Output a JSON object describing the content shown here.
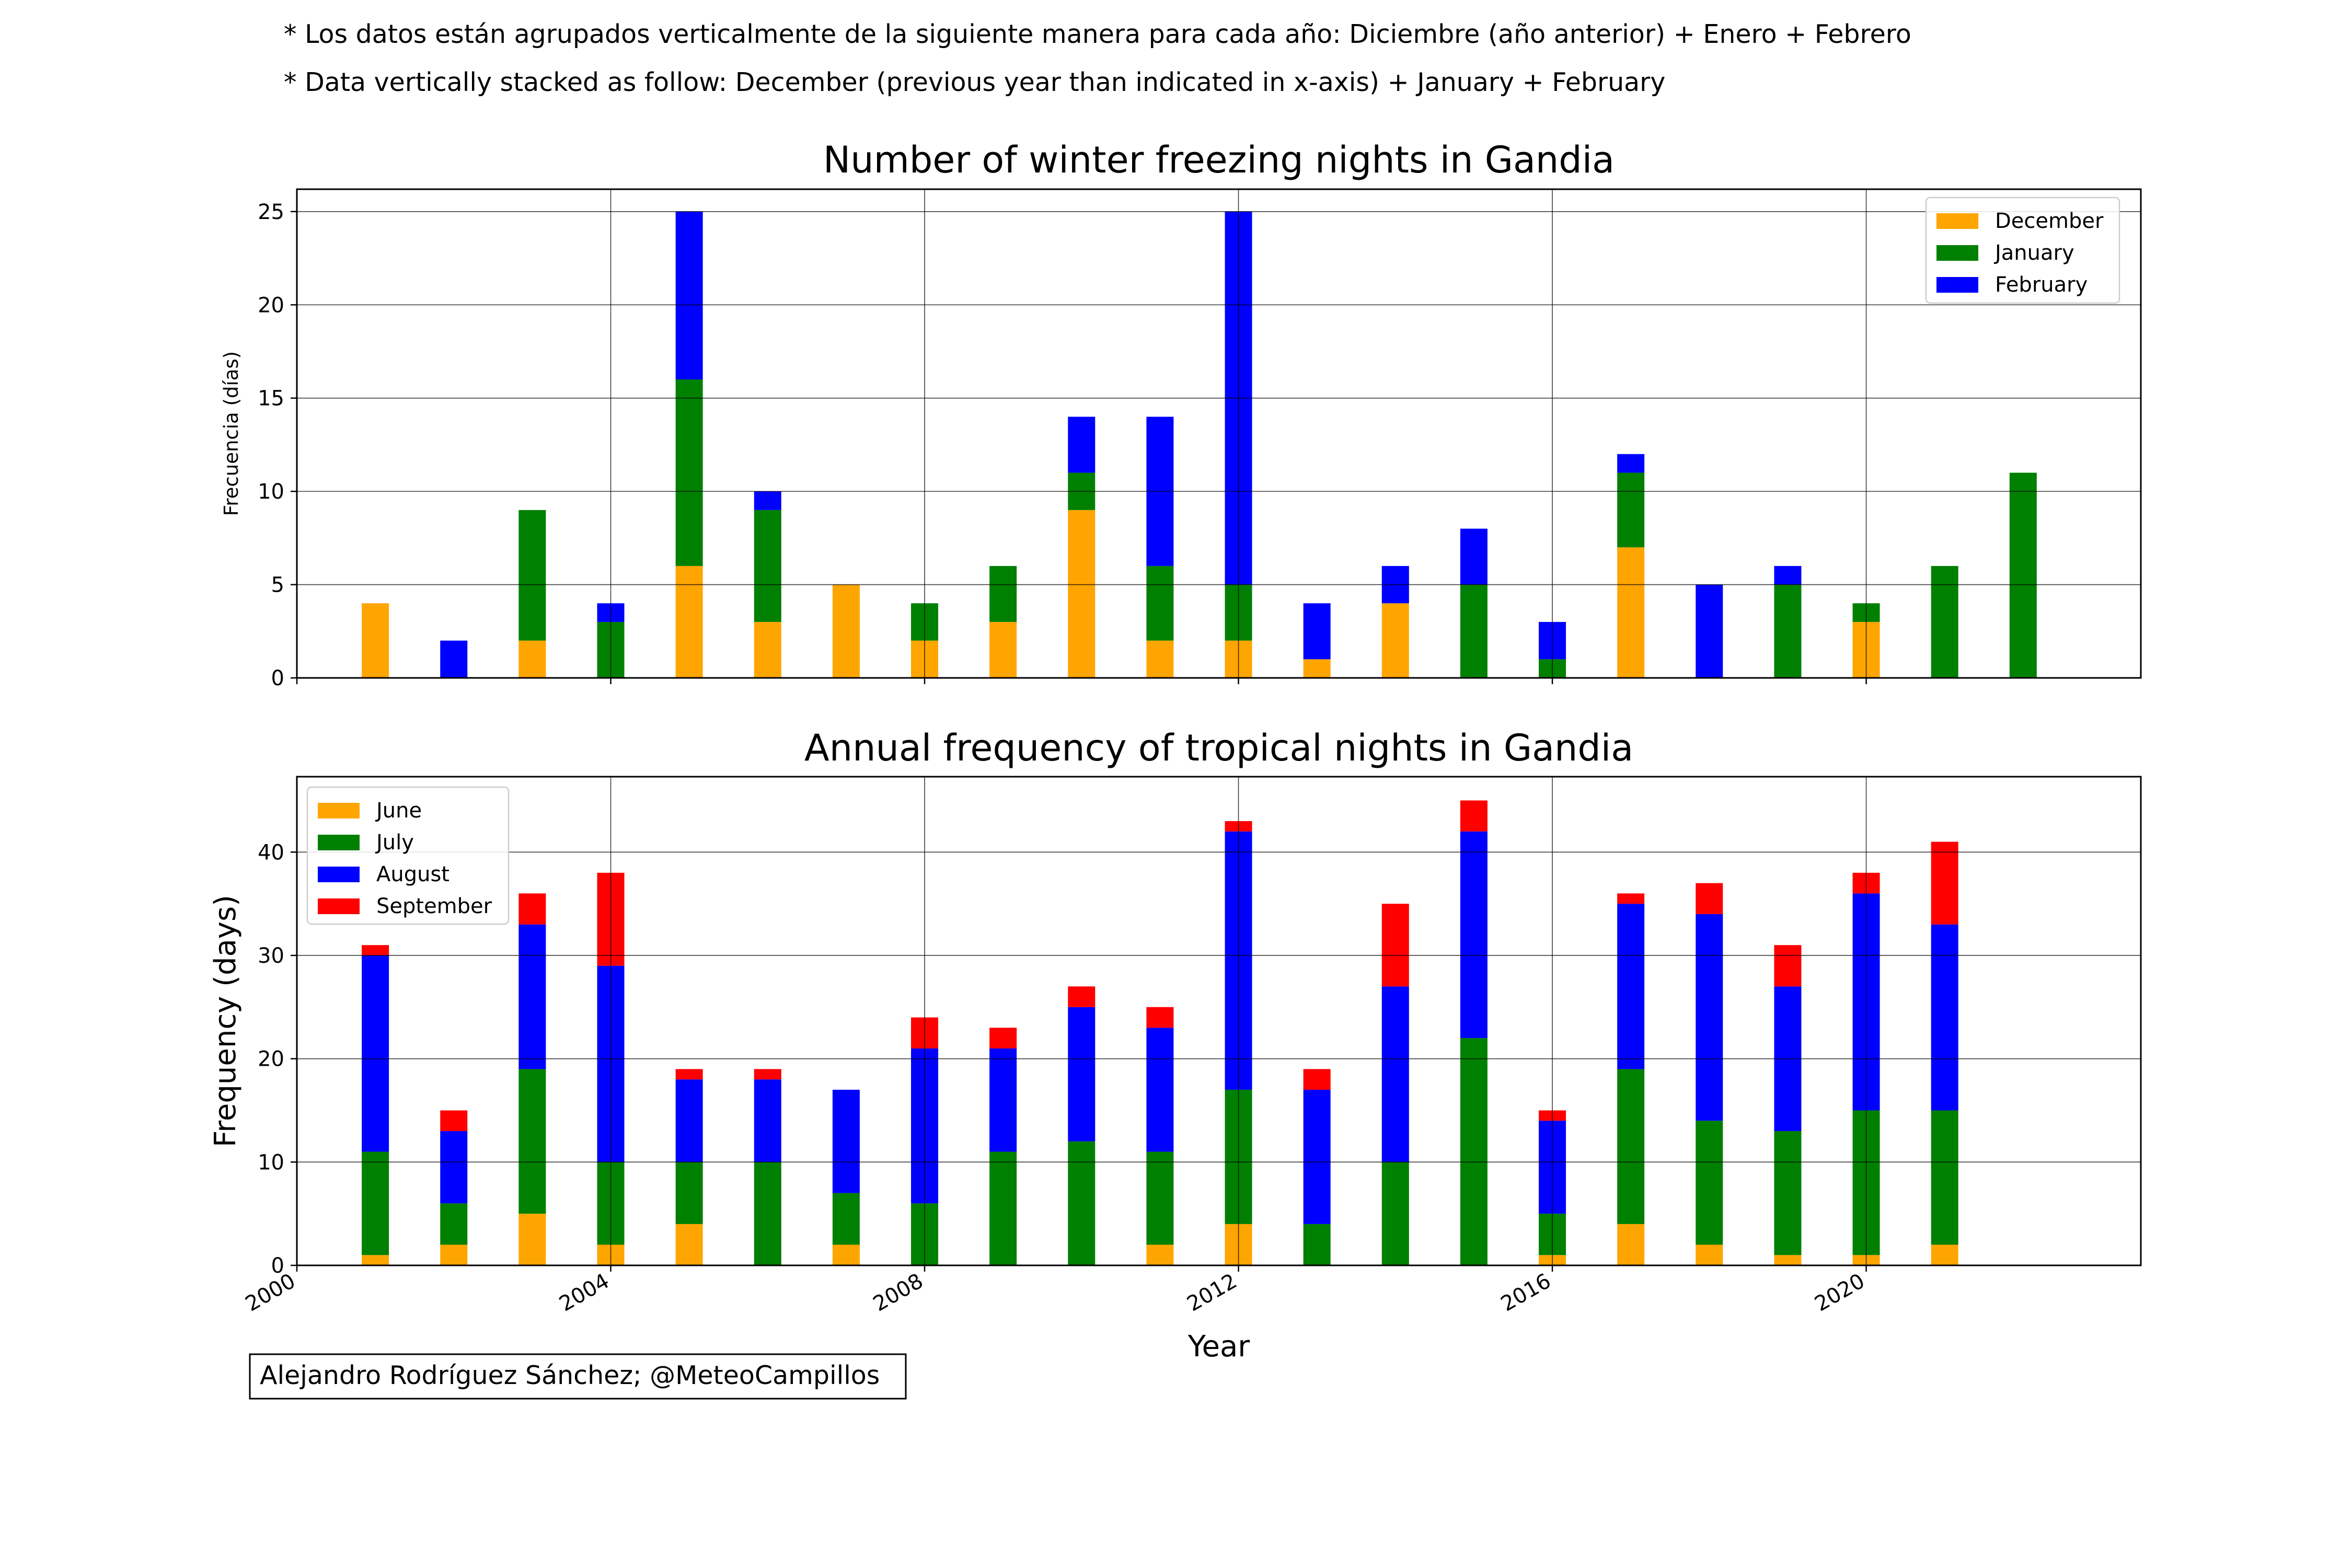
{
  "notes": [
    "* Los datos están agrupados verticalmente de la siguiente manera para cada año: Diciembre (año anterior) + Enero  + Febrero",
    "* Data vertically stacked as follow: December (previous year than indicated in x-axis) + January  + February"
  ],
  "credit": "Alejandro Rodríguez Sánchez; @MeteoCampillos",
  "chart_data": [
    {
      "type": "bar",
      "stacked": true,
      "title": "Number of winter freezing nights in Gandia",
      "xlabel": "",
      "ylabel": "Frecuencia (días)",
      "xlim": [
        2000,
        2023.5
      ],
      "ylim": [
        0,
        26.2
      ],
      "yticks": [
        0,
        5,
        10,
        15,
        20,
        25
      ],
      "xticks": [
        2000,
        2004,
        2008,
        2012,
        2016,
        2020
      ],
      "show_xtick_labels": false,
      "grid": true,
      "legend_position": "upper right",
      "categories": [
        2001,
        2002,
        2003,
        2004,
        2005,
        2006,
        2007,
        2008,
        2009,
        2010,
        2011,
        2012,
        2013,
        2014,
        2015,
        2016,
        2017,
        2018,
        2019,
        2020,
        2021,
        2022
      ],
      "series": [
        {
          "name": "December",
          "color": "#ffa500",
          "values": [
            4,
            0,
            2,
            0,
            6,
            3,
            5,
            2,
            3,
            9,
            2,
            2,
            1,
            4,
            0,
            0,
            7,
            0,
            0,
            3,
            0,
            0
          ]
        },
        {
          "name": "January",
          "color": "#008000",
          "values": [
            0,
            0,
            7,
            3,
            10,
            6,
            0,
            2,
            3,
            2,
            4,
            3,
            0,
            0,
            5,
            1,
            4,
            0,
            5,
            1,
            6,
            11
          ]
        },
        {
          "name": "February",
          "color": "#0000ff",
          "values": [
            0,
            2,
            0,
            1,
            9,
            1,
            0,
            0,
            0,
            3,
            8,
            20,
            3,
            2,
            3,
            2,
            1,
            5,
            1,
            0,
            0,
            0
          ]
        }
      ]
    },
    {
      "type": "bar",
      "stacked": true,
      "title": "Annual frequency of tropical nights in Gandia",
      "xlabel": "Year",
      "ylabel": "Frequency (days)",
      "xlim": [
        2000,
        2023.5
      ],
      "ylim": [
        0,
        47.3
      ],
      "yticks": [
        0,
        10,
        20,
        30,
        40
      ],
      "xticks": [
        2000,
        2004,
        2008,
        2012,
        2016,
        2020
      ],
      "xtick_labels": [
        "2000",
        "2004",
        "2008",
        "2012",
        "2016",
        "2020"
      ],
      "grid": true,
      "legend_position": "upper left",
      "categories": [
        2001,
        2002,
        2003,
        2004,
        2005,
        2006,
        2007,
        2008,
        2009,
        2010,
        2011,
        2012,
        2013,
        2014,
        2015,
        2016,
        2017,
        2018,
        2019,
        2020,
        2021
      ],
      "series": [
        {
          "name": "June",
          "color": "#ffa500",
          "values": [
            1,
            2,
            5,
            2,
            4,
            0,
            2,
            0,
            0,
            0,
            2,
            4,
            0,
            0,
            0,
            1,
            4,
            2,
            1,
            1,
            2
          ]
        },
        {
          "name": "July",
          "color": "#008000",
          "values": [
            10,
            4,
            14,
            8,
            6,
            10,
            5,
            6,
            11,
            12,
            9,
            13,
            4,
            10,
            22,
            4,
            15,
            12,
            12,
            14,
            13
          ]
        },
        {
          "name": "August",
          "color": "#0000ff",
          "values": [
            19,
            7,
            14,
            19,
            8,
            8,
            10,
            15,
            10,
            13,
            12,
            25,
            13,
            17,
            20,
            9,
            16,
            20,
            14,
            21,
            18
          ]
        },
        {
          "name": "September",
          "color": "#ff0000",
          "values": [
            1,
            2,
            3,
            9,
            1,
            1,
            0,
            3,
            2,
            2,
            2,
            1,
            2,
            8,
            3,
            1,
            1,
            3,
            4,
            2,
            8
          ]
        }
      ]
    }
  ]
}
